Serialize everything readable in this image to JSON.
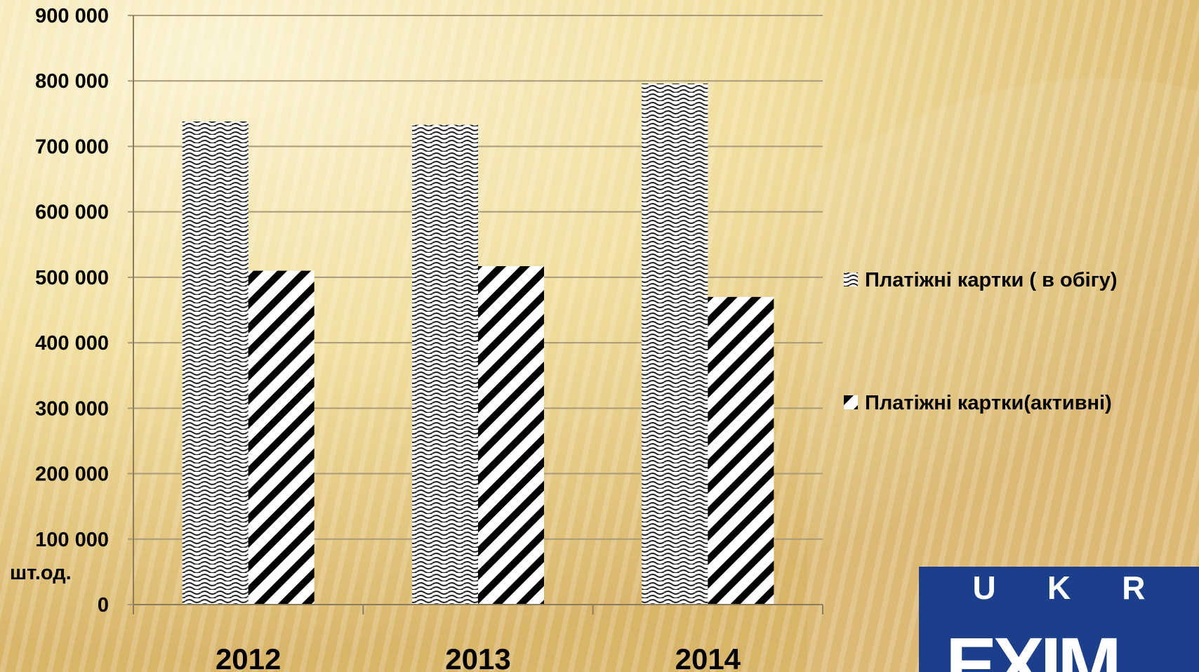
{
  "chart_data": {
    "type": "bar",
    "categories": [
      "2012",
      "2013",
      "2014"
    ],
    "series": [
      {
        "name": "Платіжні картки ( в обігу)",
        "values": [
          738000,
          733000,
          796000
        ],
        "pattern": "wave"
      },
      {
        "name": "Платіжні картки(активні)",
        "values": [
          510000,
          517000,
          470000
        ],
        "pattern": "diagonal"
      }
    ],
    "ylim": [
      0,
      900000
    ],
    "yticks": [
      0,
      100000,
      200000,
      300000,
      400000,
      500000,
      600000,
      700000,
      800000,
      900000
    ],
    "ytick_labels": [
      "0",
      "100 000",
      "200 000",
      "300 000",
      "400 000",
      "500 000",
      "600 000",
      "700 000",
      "800 000",
      "900 000"
    ],
    "ylabel": "шт.од.",
    "grid": true,
    "legend_position": "right"
  },
  "logo": {
    "top_letters": [
      "U",
      "K",
      "R"
    ],
    "bottom_text": "EXIM"
  },
  "colors": {
    "background": "#f3e3a6",
    "logo_blue": "#1b3f8b",
    "gridline": "#a89a7a"
  }
}
